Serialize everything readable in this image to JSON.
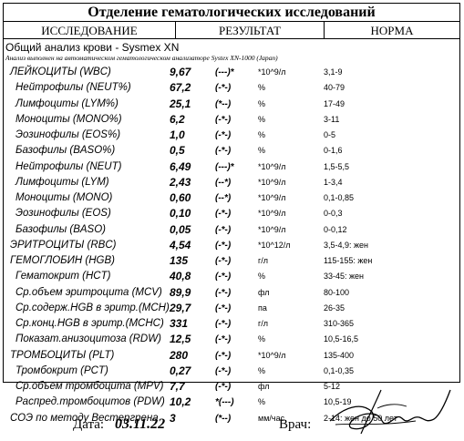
{
  "header": {
    "title": "Отделение гематологических исследований",
    "col_test": "ИССЛЕДОВАНИЕ",
    "col_result": "РЕЗУЛЬТАТ",
    "col_norm": "НОРМА"
  },
  "analysis_title": "Общий анализ крови - Sysmex XN",
  "method_note": "Анализ выполнен на автоматическом гематологическом анализаторе Systex  XN-1000  (Japan)",
  "rows": [
    {
      "name": "ЛЕЙКОЦИТЫ (WBC)",
      "value": "9,67",
      "flag": "(---)*",
      "unit": "*10^9/л",
      "norm": "3,1-9",
      "sub": false
    },
    {
      "name": "Нейтрофилы (NEUT%)",
      "value": "67,2",
      "flag": "(-*-)",
      "unit": "%",
      "norm": "40-79",
      "sub": true
    },
    {
      "name": "Лимфоциты (LYM%)",
      "value": "25,1",
      "flag": "(*--)",
      "unit": "%",
      "norm": "17-49",
      "sub": true
    },
    {
      "name": "Моноциты (MONO%)",
      "value": "6,2",
      "flag": "(-*-)",
      "unit": "%",
      "norm": "3-11",
      "sub": true
    },
    {
      "name": "Эозинофилы (EOS%)",
      "value": "1,0",
      "flag": "(-*-)",
      "unit": "%",
      "norm": "0-5",
      "sub": true
    },
    {
      "name": "Базофилы (BASO%)",
      "value": "0,5",
      "flag": "(-*-)",
      "unit": "%",
      "norm": "0-1,6",
      "sub": true
    },
    {
      "name": "Нейтрофилы (NEUT)",
      "value": "6,49",
      "flag": "(---)*",
      "unit": "*10^9/л",
      "norm": "1,5-5,5",
      "sub": true
    },
    {
      "name": "Лимфоциты (LYM)",
      "value": "2,43",
      "flag": "(--*)",
      "unit": "*10^9/л",
      "norm": "1-3,4",
      "sub": true
    },
    {
      "name": "Моноциты (MONO)",
      "value": "0,60",
      "flag": "(--*)",
      "unit": "*10^9/л",
      "norm": "0,1-0,85",
      "sub": true
    },
    {
      "name": "Эозинофилы (EOS)",
      "value": "0,10",
      "flag": "(-*-)",
      "unit": "*10^9/л",
      "norm": "0-0,3",
      "sub": true
    },
    {
      "name": "Базофилы (BASO)",
      "value": "0,05",
      "flag": "(-*-)",
      "unit": "*10^9/л",
      "norm": "0-0,12",
      "sub": true
    },
    {
      "name": "ЭРИТРОЦИТЫ (RBC)",
      "value": "4,54",
      "flag": "(-*-)",
      "unit": "*10^12/л",
      "norm": "3,5-4,9: жен",
      "sub": false
    },
    {
      "name": "ГЕМОГЛОБИН (HGB)",
      "value": "135",
      "flag": "(-*-)",
      "unit": "г/л",
      "norm": "115-155: жен",
      "sub": false
    },
    {
      "name": "Гематокрит (HCT)",
      "value": "40,8",
      "flag": "(-*-)",
      "unit": "%",
      "norm": "33-45: жен",
      "sub": true
    },
    {
      "name": "Ср.объем эритроцита (MCV)",
      "value": "89,9",
      "flag": "(-*-)",
      "unit": "фл",
      "norm": "80-100",
      "sub": true
    },
    {
      "name": "Ср.содерж.HGB в эритр.(MCH)",
      "value": "29,7",
      "flag": "(-*-)",
      "unit": "па",
      "norm": "26-35",
      "sub": true
    },
    {
      "name": "Ср.конц.HGB в эритр.(MCHC)",
      "value": "331",
      "flag": "(-*-)",
      "unit": "г/л",
      "norm": "310-365",
      "sub": true
    },
    {
      "name": "Показат.анизоцитоза (RDW)",
      "value": "12,5",
      "flag": "(-*-)",
      "unit": "%",
      "norm": "10,5-16,5",
      "sub": true
    },
    {
      "name": "ТРОМБОЦИТЫ (PLT)",
      "value": "280",
      "flag": "(-*-)",
      "unit": "*10^9/л",
      "norm": "135-400",
      "sub": false
    },
    {
      "name": "Тромбокрит (PCT)",
      "value": "0,27",
      "flag": "(-*-)",
      "unit": "%",
      "norm": "0,1-0,35",
      "sub": true
    },
    {
      "name": "Ср.объем тромбоцита (MPV)",
      "value": "7,7",
      "flag": "(-*-)",
      "unit": "фл",
      "norm": "5-12",
      "sub": true
    },
    {
      "name": "Распред.тромбоцитов (PDW)",
      "value": "10,2",
      "flag": "*(---)",
      "unit": "%",
      "norm": "10,5-19",
      "sub": true
    },
    {
      "name": "СОЭ по методу Вестергрена",
      "value": "3",
      "flag": "(*--)",
      "unit": "мм/час",
      "norm": "2-14: жен до 50 лет",
      "sub": false
    }
  ],
  "footer": {
    "date_label": "Дата:",
    "date_value": "03.11.22",
    "doctor_label": "Врач:"
  }
}
